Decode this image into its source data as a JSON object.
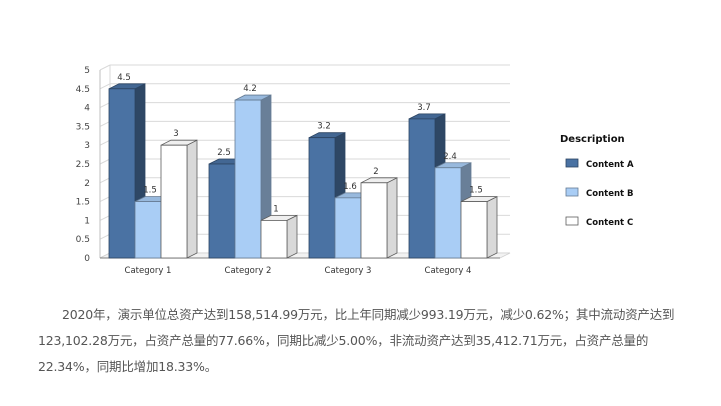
{
  "chart_data": {
    "type": "bar",
    "categories": [
      "Category 1",
      "Category 2",
      "Category 3",
      "Category 4"
    ],
    "series": [
      {
        "name": "Content A",
        "values": [
          4.5,
          2.5,
          3.2,
          3.7
        ],
        "color": "#4a72a3"
      },
      {
        "name": "Content B",
        "values": [
          1.5,
          4.2,
          1.6,
          2.4
        ],
        "color": "#a9cdf5"
      },
      {
        "name": "Content C",
        "values": [
          3,
          1,
          2,
          1.5
        ],
        "color": "#ffffff"
      }
    ],
    "y_ticks": [
      0,
      0.5,
      1,
      1.5,
      2,
      2.5,
      3,
      3.5,
      4,
      4.5,
      5
    ],
    "ylim": [
      0,
      5
    ],
    "grid": true,
    "legend_title": "Description",
    "legend_position": "right",
    "style": "3d-clustered-bar"
  },
  "summary_text": "2020年，演示单位总资产达到158,514.99万元，比上年同期减少993.19万元，减少0.62%；其中流动资产达到123,102.28万元，占资产总量的77.66%，同期比减少5.00%，非流动资产达到35,412.71万元，占资产总量的22.34%，同期比增加18.33%。"
}
